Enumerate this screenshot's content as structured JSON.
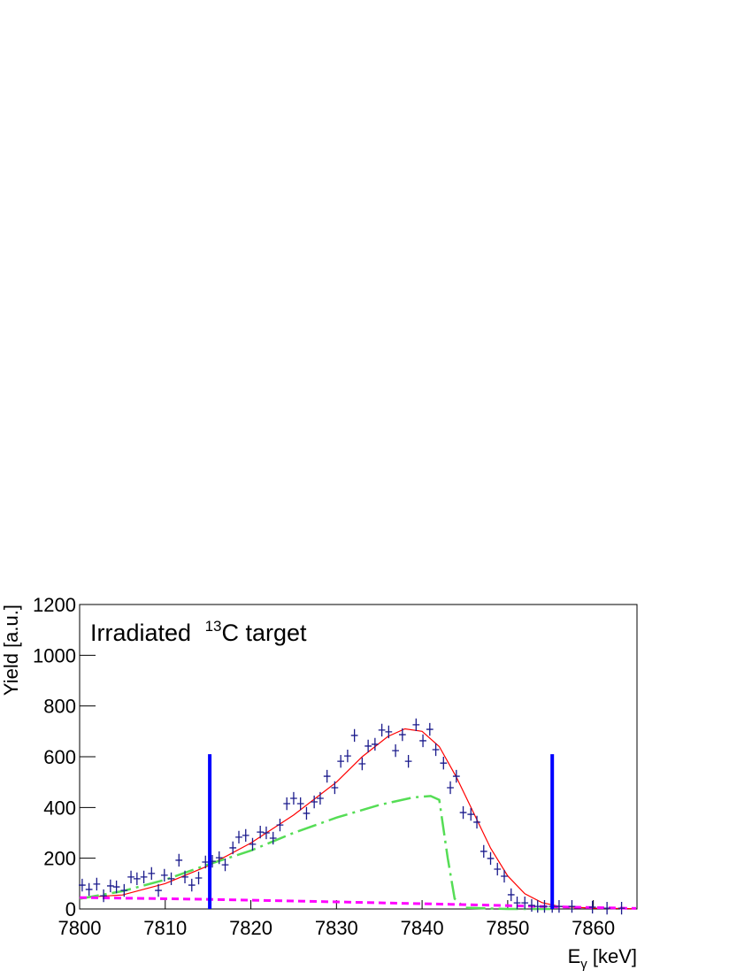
{
  "chart_data": {
    "type": "scatter",
    "title_parts": [
      "Irradiated ",
      "13",
      "C target"
    ],
    "xlabel_parts": [
      "E",
      "γ",
      " [keV]"
    ],
    "ylabel": "Yield [a.u.]",
    "xlim": [
      7800,
      7865.1
    ],
    "ylim": [
      0,
      1200
    ],
    "xticks": [
      7800,
      7810,
      7820,
      7830,
      7840,
      7850,
      7860
    ],
    "yticks": [
      0,
      200,
      400,
      600,
      800,
      1000,
      1200
    ],
    "points": {
      "color": "#1a1a8c",
      "xerr": 0.4,
      "yerr": 25,
      "x": [
        7800.3,
        7801.1,
        7802.0,
        7802.8,
        7803.6,
        7804.3,
        7805.2,
        7806.0,
        7806.7,
        7807.5,
        7808.4,
        7809.2,
        7809.9,
        7810.7,
        7811.6,
        7812.3,
        7813.1,
        7813.9,
        7814.7,
        7815.5,
        7816.3,
        7817.0,
        7817.9,
        7818.6,
        7819.4,
        7820.2,
        7821.1,
        7821.8,
        7822.6,
        7823.4,
        7824.2,
        7825.0,
        7825.8,
        7826.5,
        7827.4,
        7828.1,
        7828.9,
        7829.8,
        7830.5,
        7831.3,
        7832.1,
        7833.0,
        7833.7,
        7834.5,
        7835.3,
        7836.1,
        7836.9,
        7837.7,
        7838.4,
        7839.3,
        7840.1,
        7840.9,
        7841.6,
        7842.5,
        7843.3,
        7844.0,
        7844.8,
        7845.7,
        7846.4,
        7847.2,
        7848.0,
        7848.8,
        7849.6,
        7850.4,
        7851.1,
        7852.0,
        7852.8,
        7853.5,
        7854.3,
        7855.2,
        7856.0,
        7857.5,
        7859.9,
        7861.6,
        7863.3
      ],
      "values": [
        94,
        77,
        98,
        52,
        91,
        87,
        73,
        126,
        119,
        126,
        140,
        73,
        133,
        119,
        192,
        126,
        94,
        122,
        185,
        188,
        202,
        174,
        241,
        283,
        290,
        255,
        303,
        300,
        279,
        331,
        415,
        436,
        415,
        377,
        422,
        436,
        523,
        478,
        582,
        603,
        684,
        572,
        642,
        649,
        705,
        698,
        624,
        687,
        582,
        726,
        663,
        708,
        628,
        575,
        478,
        523,
        380,
        373,
        342,
        227,
        199,
        157,
        129,
        56,
        24,
        24,
        14,
        10,
        10,
        10,
        10,
        10,
        7,
        3,
        3
      ]
    },
    "curves": [
      {
        "color": "#ff0000",
        "dash": "none",
        "width": 1.2,
        "x": [
          7800,
          7805,
          7810,
          7815,
          7820,
          7825,
          7830,
          7833,
          7836,
          7838,
          7840,
          7842,
          7844,
          7846,
          7848,
          7850,
          7852,
          7854,
          7856,
          7860,
          7865
        ],
        "values": [
          45,
          55,
          100,
          170,
          260,
          370,
          500,
          600,
          680,
          710,
          700,
          640,
          520,
          380,
          240,
          130,
          60,
          25,
          10,
          3,
          1
        ]
      },
      {
        "color": "#55dd55",
        "dash": "22,6,3,6",
        "width": 2.5,
        "x": [
          7800,
          7805,
          7810,
          7815,
          7820,
          7825,
          7830,
          7835,
          7839,
          7841,
          7842,
          7843,
          7843.8,
          7845,
          7850,
          7855
        ],
        "values": [
          40,
          70,
          115,
          175,
          230,
          300,
          360,
          410,
          440,
          445,
          430,
          200,
          40,
          5,
          0,
          0
        ]
      },
      {
        "color": "#ff00ff",
        "dash": "8,5",
        "width": 3,
        "x": [
          7800,
          7815,
          7830,
          7845,
          7855,
          7865
        ],
        "values": [
          45,
          38,
          28,
          17,
          9,
          2
        ]
      }
    ],
    "markers": {
      "color": "#0000ff",
      "x": [
        7815.2,
        7855.2
      ],
      "values": [
        610,
        610
      ]
    }
  }
}
